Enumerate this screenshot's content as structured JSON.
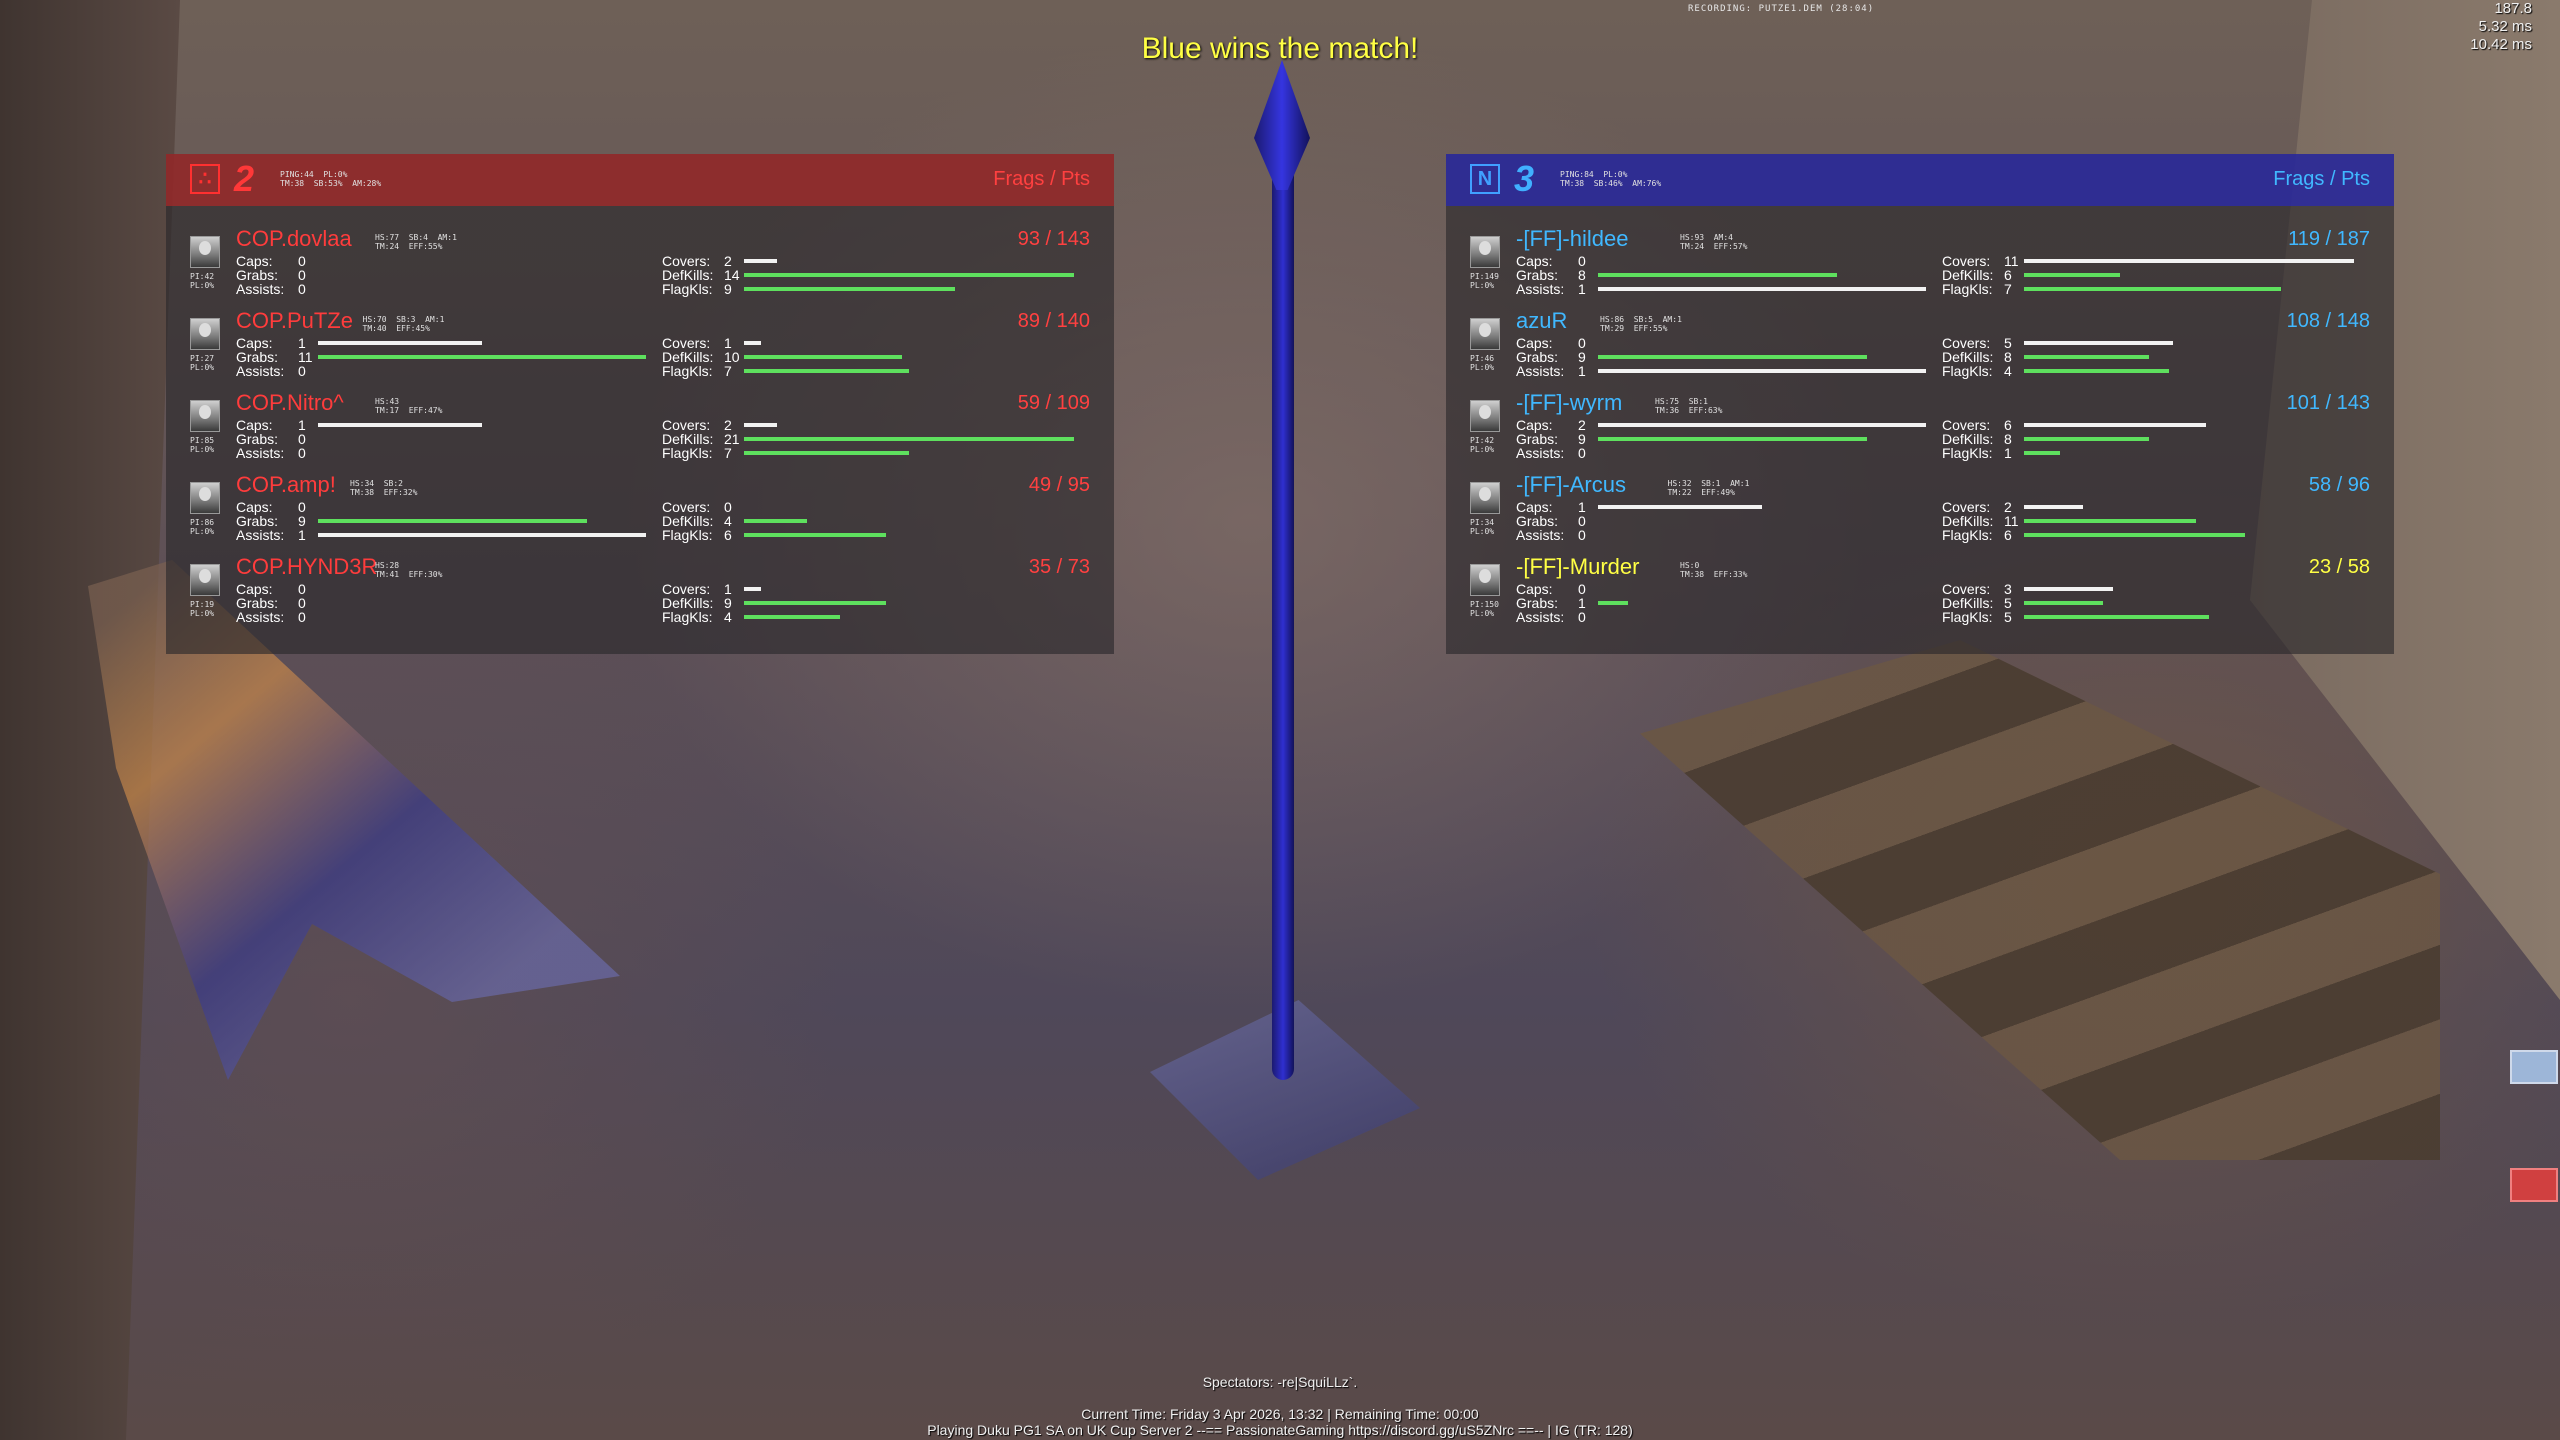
{
  "hud": {
    "winner": "Blue wins the match!",
    "recording": "RECORDING: PUTZE1.DEM (28:04)",
    "perf": [
      "187.8",
      "5.32 ms",
      "10.42 ms"
    ]
  },
  "header_label": "Frags / Pts",
  "teams": [
    {
      "side": "red",
      "icon": "red-team-icon",
      "score": "2",
      "stats_line1": "PING:44  PL:0%",
      "stats_line2": "TM:38  SB:53%  AM:28%",
      "players": [
        {
          "name": "COP.dovlaa",
          "extra1": "HS:77  SB:4  AM:1",
          "extra2": "TM:24  EFF:55%",
          "ping": "PI:42",
          "pl": "PL:0%",
          "score": "93 / 143",
          "caps": "0",
          "grabs": "0",
          "assists": "0",
          "covers": "2",
          "defkills": "14",
          "flagkills": "9",
          "gold": false,
          "bars": {
            "caps": 0,
            "grabs": 0,
            "assists": 0,
            "covers": 0.1,
            "defkills": 1.0,
            "flagkills": 0.64
          }
        },
        {
          "name": "COP.PuTZe",
          "extra1": "HS:70  SB:3  AM:1",
          "extra2": "TM:40  EFF:45%",
          "ping": "PI:27",
          "pl": "PL:0%",
          "score": "89 / 140",
          "caps": "1",
          "grabs": "11",
          "assists": "0",
          "covers": "1",
          "defkills": "10",
          "flagkills": "7",
          "gold": false,
          "bars": {
            "caps": 0.5,
            "grabs": 1.0,
            "assists": 0,
            "covers": 0.05,
            "defkills": 0.48,
            "flagkills": 0.5
          }
        },
        {
          "name": "COP.Nitro^",
          "extra1": "HS:43",
          "extra2": "TM:17  EFF:47%",
          "ping": "PI:85",
          "pl": "PL:0%",
          "score": "59 / 109",
          "caps": "1",
          "grabs": "0",
          "assists": "0",
          "covers": "2",
          "defkills": "21",
          "flagkills": "7",
          "gold": false,
          "bars": {
            "caps": 0.5,
            "grabs": 0,
            "assists": 0,
            "covers": 0.1,
            "defkills": 1.0,
            "flagkills": 0.5
          }
        },
        {
          "name": "COP.amp!",
          "extra1": "HS:34  SB:2",
          "extra2": "TM:38  EFF:32%",
          "ping": "PI:86",
          "pl": "PL:0%",
          "score": "49 / 95",
          "caps": "0",
          "grabs": "9",
          "assists": "1",
          "covers": "0",
          "defkills": "4",
          "flagkills": "6",
          "gold": false,
          "bars": {
            "caps": 0,
            "grabs": 0.82,
            "assists": 1.0,
            "covers": 0,
            "defkills": 0.19,
            "flagkills": 0.43
          }
        },
        {
          "name": "COP.HYND3R",
          "extra1": "HS:28",
          "extra2": "TM:41  EFF:30%",
          "ping": "PI:19",
          "pl": "PL:0%",
          "score": "35 / 73",
          "caps": "0",
          "grabs": "0",
          "assists": "0",
          "covers": "1",
          "defkills": "9",
          "flagkills": "4",
          "gold": false,
          "bars": {
            "caps": 0,
            "grabs": 0,
            "assists": 0,
            "covers": 0.05,
            "defkills": 0.43,
            "flagkills": 0.29
          }
        }
      ]
    },
    {
      "side": "blue",
      "icon": "blue-team-icon",
      "score": "3",
      "stats_line1": "PING:84  PL:0%",
      "stats_line2": "TM:38  SB:46%  AM:76%",
      "players": [
        {
          "name": "-[FF]-hildee",
          "extra1": "HS:93  AM:4",
          "extra2": "TM:24  EFF:57%",
          "ping": "PI:149",
          "pl": "PL:0%",
          "score": "119 / 187",
          "caps": "0",
          "grabs": "8",
          "assists": "1",
          "covers": "11",
          "defkills": "6",
          "flagkills": "7",
          "gold": false,
          "bars": {
            "caps": 0,
            "grabs": 0.73,
            "assists": 1.0,
            "covers": 1.0,
            "defkills": 0.29,
            "flagkills": 0.78
          }
        },
        {
          "name": "azuR",
          "extra1": "HS:86  SB:5  AM:1",
          "extra2": "TM:29  EFF:55%",
          "ping": "PI:46",
          "pl": "PL:0%",
          "score": "108 / 148",
          "caps": "0",
          "grabs": "9",
          "assists": "1",
          "covers": "5",
          "defkills": "8",
          "flagkills": "4",
          "gold": false,
          "bars": {
            "caps": 0,
            "grabs": 0.82,
            "assists": 1.0,
            "covers": 0.45,
            "defkills": 0.38,
            "flagkills": 0.44
          }
        },
        {
          "name": "-[FF]-wyrm",
          "extra1": "HS:75  SB:1",
          "extra2": "TM:36  EFF:63%",
          "ping": "PI:42",
          "pl": "PL:0%",
          "score": "101 / 143",
          "caps": "2",
          "grabs": "9",
          "assists": "0",
          "covers": "6",
          "defkills": "8",
          "flagkills": "1",
          "gold": false,
          "bars": {
            "caps": 1.0,
            "grabs": 0.82,
            "assists": 0,
            "covers": 0.55,
            "defkills": 0.38,
            "flagkills": 0.11
          }
        },
        {
          "name": "-[FF]-Arcus",
          "extra1": "HS:32  SB:1  AM:1",
          "extra2": "TM:22  EFF:49%",
          "ping": "PI:34",
          "pl": "PL:0%",
          "score": "58 / 96",
          "caps": "1",
          "grabs": "0",
          "assists": "0",
          "covers": "2",
          "defkills": "11",
          "flagkills": "6",
          "gold": false,
          "bars": {
            "caps": 0.5,
            "grabs": 0,
            "assists": 0,
            "covers": 0.18,
            "defkills": 0.52,
            "flagkills": 0.67
          }
        },
        {
          "name": "-[FF]-Murder",
          "extra1": "HS:0",
          "extra2": "TM:38  EFF:33%",
          "ping": "PI:150",
          "pl": "PL:0%",
          "score": "23 / 58",
          "caps": "0",
          "grabs": "1",
          "assists": "0",
          "covers": "3",
          "defkills": "5",
          "flagkills": "5",
          "gold": true,
          "bars": {
            "caps": 0,
            "grabs": 0.09,
            "assists": 0,
            "covers": 0.27,
            "defkills": 0.24,
            "flagkills": 0.56
          }
        }
      ]
    }
  ],
  "stat_labels": {
    "caps": "Caps:",
    "grabs": "Grabs:",
    "assists": "Assists:",
    "covers": "Covers:",
    "defkills": "DefKills:",
    "flagkills": "FlagKls:"
  },
  "footer": {
    "spectators": "Spectators: -re|SquiLLz`.",
    "time": "Current Time: Friday 3 Apr 2026, 13:32 | Remaining Time: 00:00",
    "server": "Playing Duku PG1 SA on UK Cup Server 2 --== PassionateGaming https://discord.gg/uS5ZNrc ==-- | IG (TR: 128)"
  }
}
